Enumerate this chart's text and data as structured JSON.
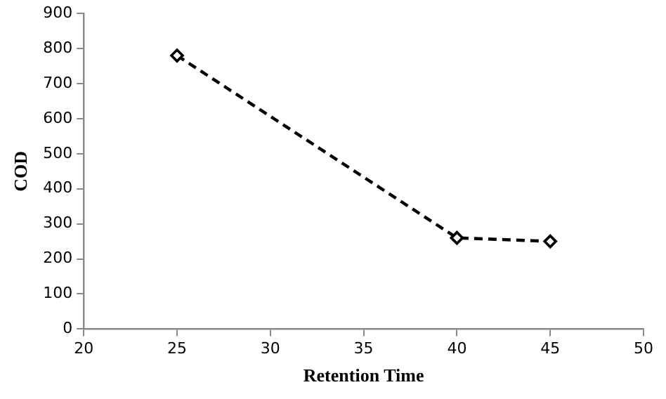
{
  "chart_data": {
    "type": "line",
    "xlabel": "Retention Time",
    "ylabel": "COD",
    "x": [
      25,
      40,
      45
    ],
    "series": [
      {
        "color": "#000000",
        "values": [
          780,
          260,
          250
        ]
      }
    ],
    "xlim": [
      20,
      50
    ],
    "xticks": [
      20,
      25,
      30,
      35,
      40,
      45,
      50
    ],
    "ylim": [
      0,
      900
    ],
    "yticks": [
      0,
      100,
      200,
      300,
      400,
      500,
      600,
      700,
      800,
      900
    ],
    "grid": false,
    "legend": false,
    "marker": "diamond",
    "line_style": "dashed"
  }
}
